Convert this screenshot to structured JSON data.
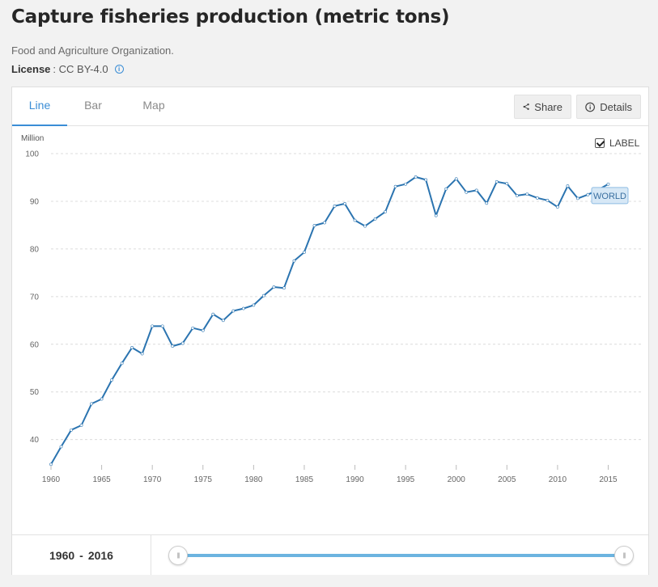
{
  "header": {
    "title": "Capture fisheries production (metric tons)",
    "source": "Food and Agriculture Organization.",
    "license_label": "License",
    "license_value": ": CC BY-4.0"
  },
  "tabs": [
    {
      "label": "Line"
    },
    {
      "label": "Bar"
    },
    {
      "label": "Map"
    }
  ],
  "actions": {
    "share_label": "Share",
    "details_label": "Details"
  },
  "label_toggle": {
    "text": "LABEL",
    "checked": true
  },
  "range": {
    "start": "1960",
    "separator": "-",
    "end": "2016"
  },
  "colors": {
    "accent": "#3a8dd6",
    "line": "#2b74b0",
    "slider": "#6cb4e0"
  },
  "chart_data": {
    "type": "line",
    "unit_label": "Million",
    "xlim": [
      1960,
      2016
    ],
    "ylim": [
      34,
      100
    ],
    "yticks": [
      40,
      50,
      60,
      70,
      80,
      90,
      100
    ],
    "xticks": [
      1960,
      1965,
      1970,
      1975,
      1980,
      1985,
      1990,
      1995,
      2000,
      2005,
      2010,
      2015
    ],
    "grid": true,
    "series": [
      {
        "name": "WORLD",
        "x": [
          1960,
          1961,
          1962,
          1963,
          1964,
          1965,
          1966,
          1967,
          1968,
          1969,
          1970,
          1971,
          1972,
          1973,
          1974,
          1975,
          1976,
          1977,
          1978,
          1979,
          1980,
          1981,
          1982,
          1983,
          1984,
          1985,
          1986,
          1987,
          1988,
          1989,
          1990,
          1991,
          1992,
          1993,
          1994,
          1995,
          1996,
          1997,
          1998,
          1999,
          2000,
          2001,
          2002,
          2003,
          2004,
          2005,
          2006,
          2007,
          2008,
          2009,
          2010,
          2011,
          2012,
          2013,
          2014,
          2015
        ],
        "values": [
          34.8,
          38.5,
          42.0,
          43.0,
          47.5,
          48.5,
          52.5,
          56.0,
          59.3,
          58.0,
          63.8,
          63.8,
          59.6,
          60.2,
          63.4,
          62.9,
          66.3,
          65.0,
          67.0,
          67.5,
          68.2,
          70.2,
          72.0,
          71.8,
          77.5,
          79.3,
          84.9,
          85.5,
          89.0,
          89.5,
          86.0,
          84.8,
          86.3,
          87.8,
          93.1,
          93.6,
          95.1,
          94.5,
          87.0,
          92.6,
          94.7,
          91.9,
          92.3,
          89.6,
          94.1,
          93.7,
          91.2,
          91.5,
          90.7,
          90.2,
          88.8,
          93.2,
          90.6,
          91.4,
          92.4,
          93.6
        ]
      }
    ]
  }
}
